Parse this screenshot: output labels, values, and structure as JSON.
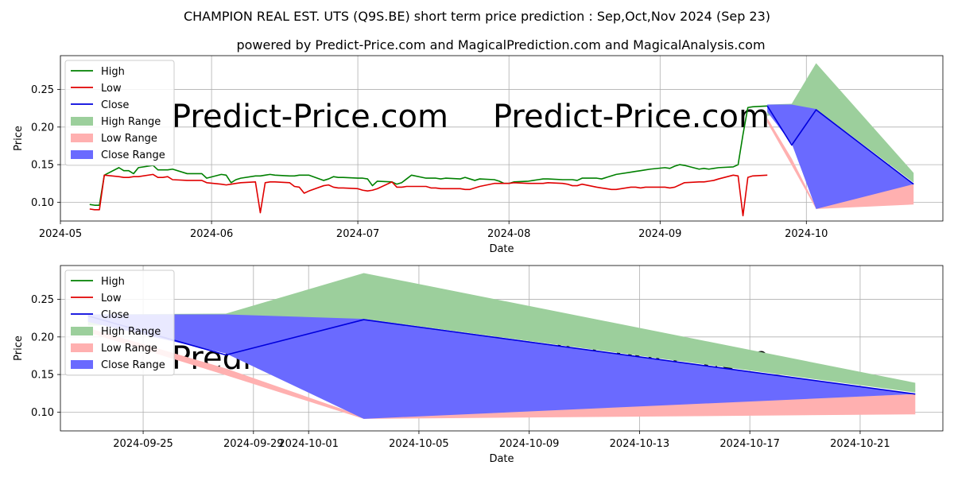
{
  "title": "CHAMPION REAL EST. UTS (Q9S.BE) short term price prediction : Sep,Oct,Nov 2024 (Sep 23)",
  "subtitle": "powered by Predict-Price.com and MagicalPrediction.com and MagicalAnalysis.com",
  "watermark": "Predict-Price.com",
  "colors": {
    "high": "#008000",
    "low": "#e00000",
    "close": "#0000dd",
    "high_range": "#9ccf9c",
    "low_range": "#ffb0b0",
    "close_range": "#6a6aff",
    "grid": "#b0b0b0"
  },
  "chart_data": [
    {
      "type": "line",
      "name": "top-chart",
      "xlabel": "Date",
      "ylabel": "Price",
      "ylim": [
        0.075,
        0.295
      ],
      "xlim": [
        "2024-05-01",
        "2024-10-29"
      ],
      "xticks": [
        "2024-05-01",
        "2024-06-01",
        "2024-07-01",
        "2024-08-01",
        "2024-09-01",
        "2024-10-01"
      ],
      "xtick_labels": [
        "2024-05",
        "2024-06",
        "2024-07",
        "2024-08",
        "2024-09",
        "2024-10"
      ],
      "yticks": [
        0.1,
        0.15,
        0.2,
        0.25
      ],
      "ytick_labels": [
        "0.10",
        "0.15",
        "0.20",
        "0.25"
      ],
      "grid": true,
      "legend": [
        "High",
        "Low",
        "Close",
        "High Range",
        "Low Range",
        "Close Range"
      ],
      "legend_position": "upper-left",
      "series": [
        {
          "name": "High",
          "x": [
            "2024-05-07",
            "2024-05-08",
            "2024-05-09",
            "2024-05-10",
            "2024-05-13",
            "2024-05-14",
            "2024-05-15",
            "2024-05-16",
            "2024-05-17",
            "2024-05-20",
            "2024-05-21",
            "2024-05-22",
            "2024-05-23",
            "2024-05-24",
            "2024-05-27",
            "2024-05-28",
            "2024-05-29",
            "2024-05-30",
            "2024-05-31",
            "2024-06-03",
            "2024-06-04",
            "2024-06-05",
            "2024-06-06",
            "2024-06-07",
            "2024-06-10",
            "2024-06-11",
            "2024-06-12",
            "2024-06-13",
            "2024-06-14",
            "2024-06-17",
            "2024-06-18",
            "2024-06-19",
            "2024-06-20",
            "2024-06-21",
            "2024-06-24",
            "2024-06-25",
            "2024-06-26",
            "2024-06-27",
            "2024-06-28",
            "2024-07-01",
            "2024-07-02",
            "2024-07-03",
            "2024-07-04",
            "2024-07-05",
            "2024-07-08",
            "2024-07-09",
            "2024-07-10",
            "2024-07-11",
            "2024-07-12",
            "2024-07-15",
            "2024-07-16",
            "2024-07-17",
            "2024-07-18",
            "2024-07-19",
            "2024-07-22",
            "2024-07-23",
            "2024-07-24",
            "2024-07-25",
            "2024-07-26",
            "2024-07-29",
            "2024-07-30",
            "2024-07-31",
            "2024-08-01",
            "2024-08-02",
            "2024-08-05",
            "2024-08-06",
            "2024-08-07",
            "2024-08-08",
            "2024-08-09",
            "2024-08-12",
            "2024-08-13",
            "2024-08-14",
            "2024-08-15",
            "2024-08-16",
            "2024-08-19",
            "2024-08-20",
            "2024-08-21",
            "2024-08-22",
            "2024-08-23",
            "2024-08-26",
            "2024-08-27",
            "2024-08-28",
            "2024-08-29",
            "2024-08-30",
            "2024-09-02",
            "2024-09-03",
            "2024-09-04",
            "2024-09-05",
            "2024-09-06",
            "2024-09-09",
            "2024-09-10",
            "2024-09-11",
            "2024-09-12",
            "2024-09-13",
            "2024-09-16",
            "2024-09-17",
            "2024-09-18",
            "2024-09-19",
            "2024-09-20",
            "2024-09-23"
          ],
          "values": [
            0.097,
            0.096,
            0.096,
            0.136,
            0.146,
            0.142,
            0.142,
            0.138,
            0.146,
            0.149,
            0.143,
            0.143,
            0.143,
            0.144,
            0.138,
            0.138,
            0.138,
            0.138,
            0.132,
            0.137,
            0.136,
            0.126,
            0.13,
            0.132,
            0.135,
            0.135,
            0.136,
            0.137,
            0.136,
            0.135,
            0.135,
            0.136,
            0.136,
            0.136,
            0.129,
            0.131,
            0.134,
            0.133,
            0.133,
            0.132,
            0.132,
            0.131,
            0.122,
            0.128,
            0.127,
            0.124,
            0.126,
            0.131,
            0.136,
            0.132,
            0.132,
            0.132,
            0.131,
            0.132,
            0.131,
            0.133,
            0.131,
            0.129,
            0.131,
            0.13,
            0.128,
            0.125,
            0.125,
            0.127,
            0.128,
            0.129,
            0.13,
            0.131,
            0.131,
            0.13,
            0.13,
            0.13,
            0.129,
            0.132,
            0.132,
            0.131,
            0.133,
            0.135,
            0.137,
            0.14,
            0.141,
            0.142,
            0.143,
            0.144,
            0.146,
            0.145,
            0.148,
            0.15,
            0.149,
            0.144,
            0.145,
            0.144,
            0.145,
            0.146,
            0.147,
            0.15,
            0.19,
            0.226,
            0.227,
            0.228
          ],
          "color": "#008000"
        },
        {
          "name": "Low",
          "x": [
            "2024-05-07",
            "2024-05-08",
            "2024-05-09",
            "2024-05-10",
            "2024-05-13",
            "2024-05-14",
            "2024-05-15",
            "2024-05-16",
            "2024-05-17",
            "2024-05-20",
            "2024-05-21",
            "2024-05-22",
            "2024-05-23",
            "2024-05-24",
            "2024-05-27",
            "2024-05-28",
            "2024-05-29",
            "2024-05-30",
            "2024-05-31",
            "2024-06-03",
            "2024-06-04",
            "2024-06-05",
            "2024-06-06",
            "2024-06-07",
            "2024-06-10",
            "2024-06-11",
            "2024-06-12",
            "2024-06-13",
            "2024-06-14",
            "2024-06-17",
            "2024-06-18",
            "2024-06-19",
            "2024-06-20",
            "2024-06-21",
            "2024-06-24",
            "2024-06-25",
            "2024-06-26",
            "2024-06-27",
            "2024-06-28",
            "2024-07-01",
            "2024-07-02",
            "2024-07-03",
            "2024-07-04",
            "2024-07-05",
            "2024-07-08",
            "2024-07-09",
            "2024-07-10",
            "2024-07-11",
            "2024-07-12",
            "2024-07-15",
            "2024-07-16",
            "2024-07-17",
            "2024-07-18",
            "2024-07-19",
            "2024-07-22",
            "2024-07-23",
            "2024-07-24",
            "2024-07-25",
            "2024-07-26",
            "2024-07-29",
            "2024-07-30",
            "2024-07-31",
            "2024-08-01",
            "2024-08-02",
            "2024-08-05",
            "2024-08-06",
            "2024-08-07",
            "2024-08-08",
            "2024-08-09",
            "2024-08-12",
            "2024-08-13",
            "2024-08-14",
            "2024-08-15",
            "2024-08-16",
            "2024-08-19",
            "2024-08-20",
            "2024-08-21",
            "2024-08-22",
            "2024-08-23",
            "2024-08-26",
            "2024-08-27",
            "2024-08-28",
            "2024-08-29",
            "2024-08-30",
            "2024-09-02",
            "2024-09-03",
            "2024-09-04",
            "2024-09-05",
            "2024-09-06",
            "2024-09-09",
            "2024-09-10",
            "2024-09-11",
            "2024-09-12",
            "2024-09-13",
            "2024-09-16",
            "2024-09-17",
            "2024-09-18",
            "2024-09-19",
            "2024-09-20",
            "2024-09-23"
          ],
          "values": [
            0.091,
            0.09,
            0.09,
            0.136,
            0.134,
            0.133,
            0.133,
            0.134,
            0.134,
            0.137,
            0.133,
            0.133,
            0.134,
            0.13,
            0.129,
            0.129,
            0.129,
            0.129,
            0.126,
            0.124,
            0.123,
            0.124,
            0.125,
            0.126,
            0.127,
            0.086,
            0.126,
            0.127,
            0.127,
            0.126,
            0.121,
            0.12,
            0.112,
            0.115,
            0.122,
            0.123,
            0.12,
            0.119,
            0.119,
            0.118,
            0.116,
            0.115,
            0.116,
            0.118,
            0.127,
            0.12,
            0.12,
            0.121,
            0.121,
            0.121,
            0.119,
            0.119,
            0.118,
            0.118,
            0.118,
            0.117,
            0.117,
            0.119,
            0.121,
            0.125,
            0.125,
            0.125,
            0.125,
            0.126,
            0.125,
            0.125,
            0.125,
            0.125,
            0.126,
            0.125,
            0.124,
            0.122,
            0.122,
            0.124,
            0.12,
            0.119,
            0.118,
            0.117,
            0.117,
            0.12,
            0.12,
            0.119,
            0.12,
            0.12,
            0.12,
            0.119,
            0.12,
            0.123,
            0.126,
            0.127,
            0.127,
            0.128,
            0.129,
            0.131,
            0.136,
            0.135,
            0.082,
            0.133,
            0.135,
            0.136
          ],
          "color": "#e00000"
        },
        {
          "name": "Close",
          "x": [
            "2024-09-23",
            "2024-09-28",
            "2024-10-03",
            "2024-10-23"
          ],
          "values": [
            0.228,
            0.176,
            0.223,
            0.124
          ],
          "color": "#0000dd"
        }
      ],
      "ranges": [
        {
          "name": "High Range",
          "x": [
            "2024-09-23",
            "2024-09-28",
            "2024-10-03",
            "2024-10-23"
          ],
          "upper": [
            0.23,
            0.231,
            0.285,
            0.139
          ],
          "lower": [
            0.215,
            0.218,
            0.224,
            0.126
          ],
          "color": "#9ccf9c"
        },
        {
          "name": "Low Range",
          "x": [
            "2024-09-23",
            "2024-09-28",
            "2024-10-03",
            "2024-10-23"
          ],
          "upper": [
            0.212,
            0.158,
            0.094,
            0.124
          ],
          "lower": [
            0.206,
            0.149,
            0.091,
            0.097
          ],
          "color": "#ffb0b0"
        },
        {
          "name": "Close Range",
          "x": [
            "2024-09-23",
            "2024-09-28",
            "2024-10-03",
            "2024-10-23"
          ],
          "upper": [
            0.23,
            0.23,
            0.224,
            0.124
          ],
          "lower": [
            0.22,
            0.178,
            0.091,
            0.124
          ],
          "color": "#6a6aff"
        }
      ]
    },
    {
      "type": "line",
      "name": "bottom-chart",
      "xlabel": "Date",
      "ylabel": "Price",
      "ylim": [
        0.075,
        0.295
      ],
      "xlim": [
        "2024-09-22",
        "2024-10-24"
      ],
      "xticks": [
        "2024-09-25",
        "2024-09-29",
        "2024-10-01",
        "2024-10-05",
        "2024-10-09",
        "2024-10-13",
        "2024-10-17",
        "2024-10-21"
      ],
      "xtick_labels": [
        "2024-09-25",
        "2024-09-29",
        "2024-10-01",
        "2024-10-05",
        "2024-10-09",
        "2024-10-13",
        "2024-10-17",
        "2024-10-21"
      ],
      "yticks": [
        0.1,
        0.15,
        0.2,
        0.25
      ],
      "ytick_labels": [
        "0.10",
        "0.15",
        "0.20",
        "0.25"
      ],
      "grid": true,
      "legend": [
        "High",
        "Low",
        "Close",
        "High Range",
        "Low Range",
        "Close Range"
      ],
      "legend_position": "upper-left",
      "series": [
        {
          "name": "Close",
          "x": [
            "2024-09-23",
            "2024-09-28",
            "2024-10-03",
            "2024-10-23"
          ],
          "values": [
            0.228,
            0.176,
            0.223,
            0.124
          ],
          "color": "#0000dd"
        }
      ],
      "ranges": [
        {
          "name": "High Range",
          "x": [
            "2024-09-23",
            "2024-09-28",
            "2024-10-03",
            "2024-10-23"
          ],
          "upper": [
            0.23,
            0.231,
            0.285,
            0.139
          ],
          "lower": [
            0.215,
            0.218,
            0.224,
            0.126
          ],
          "color": "#9ccf9c"
        },
        {
          "name": "Low Range",
          "x": [
            "2024-09-23",
            "2024-09-28",
            "2024-10-03",
            "2024-10-23"
          ],
          "upper": [
            0.212,
            0.158,
            0.094,
            0.124
          ],
          "lower": [
            0.206,
            0.149,
            0.091,
            0.097
          ],
          "color": "#ffb0b0"
        },
        {
          "name": "Close Range",
          "x": [
            "2024-09-23",
            "2024-09-28",
            "2024-10-03",
            "2024-10-23"
          ],
          "upper": [
            0.23,
            0.23,
            0.224,
            0.124
          ],
          "lower": [
            0.22,
            0.178,
            0.091,
            0.124
          ],
          "color": "#6a6aff"
        }
      ]
    }
  ]
}
